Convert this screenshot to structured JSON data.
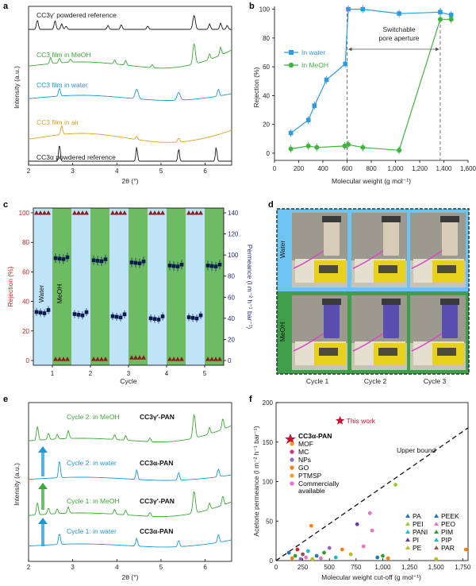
{
  "figure": {
    "panel_labels": [
      "a",
      "b",
      "c",
      "d",
      "e",
      "f"
    ]
  },
  "chart_data": [
    {
      "panel": "a",
      "type": "line",
      "xlabel": "2θ (°)",
      "ylabel": "Intensity (a.u.)",
      "xlim": [
        2,
        6.6
      ],
      "xticks": [
        2,
        3,
        4,
        5,
        6
      ],
      "series": [
        {
          "name": "CC3γ′ powdered reference",
          "color": "#1a1a1a"
        },
        {
          "name": "CC3 film in MeOH",
          "color": "#3aaa35"
        },
        {
          "name": "CC3 film in water",
          "color": "#1b9ad6"
        },
        {
          "name": "CC3 film in air",
          "color": "#e0a021"
        },
        {
          "name": "CC3α powdered reference",
          "color": "#1a1a1a"
        }
      ]
    },
    {
      "panel": "b",
      "type": "line",
      "xlabel": "Molecular weight (g mol⁻¹)",
      "ylabel": "Rejection (%)",
      "xlim": [
        0,
        1600
      ],
      "ylim": [
        -5,
        102
      ],
      "xticks": [
        0,
        200,
        400,
        600,
        800,
        1000,
        1200,
        1400,
        1600
      ],
      "yticks": [
        0,
        20,
        40,
        60,
        80,
        100
      ],
      "annotation": "Switchable pore aperture",
      "vlines": [
        600,
        1370
      ],
      "series": [
        {
          "name": "In water",
          "color": "#2b9ce0",
          "x": [
            135,
            280,
            330,
            430,
            585,
            610,
            730,
            1030,
            1370,
            1460
          ],
          "y": [
            14,
            23,
            33,
            51,
            62,
            100,
            100,
            97,
            98,
            96
          ]
        },
        {
          "name": "In MeOH",
          "color": "#3db53d",
          "x": [
            135,
            280,
            350,
            580,
            610,
            730,
            1030,
            1370,
            1460
          ],
          "y": [
            3,
            5,
            4,
            5,
            6,
            4,
            2,
            93,
            93
          ]
        }
      ]
    },
    {
      "panel": "c",
      "type": "scatter",
      "xlabel": "Cycle",
      "ylabel": "Rejection (%)",
      "y2label": "Permeance (l m⁻² h⁻¹ bar⁻¹)",
      "ylim": [
        0,
        100
      ],
      "y2lim": [
        0,
        140
      ],
      "yticks": [
        0,
        20,
        40,
        60,
        80,
        100
      ],
      "y2ticks": [
        0,
        20,
        40,
        60,
        80,
        100,
        120,
        140
      ],
      "categories": [
        "1",
        "2",
        "3",
        "4",
        "5"
      ],
      "region_labels": [
        "Water",
        "MeOH"
      ],
      "series": [
        {
          "name": "Water rejection",
          "values": [
            100,
            100,
            100,
            100,
            100
          ]
        },
        {
          "name": "MeOH rejection",
          "values": [
            1,
            1,
            2,
            1,
            1
          ]
        },
        {
          "name": "Water permeance",
          "values": [
            46,
            44,
            42,
            40,
            41
          ]
        },
        {
          "name": "MeOH permeance",
          "values": [
            97,
            95,
            93,
            90,
            90
          ]
        }
      ]
    },
    {
      "panel": "e",
      "type": "line",
      "xlabel": "2θ (°)",
      "ylabel": "Intensity (a.u.)",
      "xlim": [
        2,
        6.6
      ],
      "xticks": [
        2,
        3,
        4,
        5,
        6
      ],
      "series": [
        {
          "name": "Cycle 2: in MeOH",
          "phase": "CC3γ′-PAN",
          "color": "#3aaa35"
        },
        {
          "name": "Cycle 2: in water",
          "phase": "CC3α-PAN",
          "color": "#1b9ad6"
        },
        {
          "name": "Cycle 1: in MeOH",
          "phase": "CC3γ′-PAN",
          "color": "#3aaa35"
        },
        {
          "name": "Cycle 1: in water",
          "phase": "CC3α-PAN",
          "color": "#1b9ad6"
        }
      ]
    },
    {
      "panel": "f",
      "type": "scatter",
      "xlabel": "Molecular weight cut-off (g mol⁻¹)",
      "ylabel": "Acetone permeance (l m⁻² h⁻¹ bar⁻¹)",
      "xlim": [
        0,
        1800
      ],
      "ylim": [
        0,
        200
      ],
      "xticks": [
        0,
        250,
        500,
        750,
        1000,
        1250,
        1500,
        1750
      ],
      "yticks": [
        0,
        50,
        100,
        150,
        200
      ],
      "annotation_this_work": "This work",
      "upper_bound_label": "Upper bound",
      "legend_left": [
        "CC3α-PAN",
        "MOF",
        "MC",
        "NPs",
        "GO",
        "PTMSP",
        "Commercially available"
      ],
      "legend_right": [
        "PA",
        "PEI",
        "PANI",
        "PI",
        "PE",
        "PEEK",
        "PEO",
        "PIM",
        "PIP",
        "PAR"
      ],
      "this_work": {
        "x": 600,
        "y": 177
      },
      "upper_bound": {
        "x": [
          0,
          1800
        ],
        "y": [
          0,
          168
        ]
      }
    }
  ],
  "photo_panel": {
    "row_labels": [
      "Water",
      "MeOH"
    ],
    "column_labels": [
      "Cycle 1",
      "Cycle 2",
      "Cycle 3"
    ]
  }
}
